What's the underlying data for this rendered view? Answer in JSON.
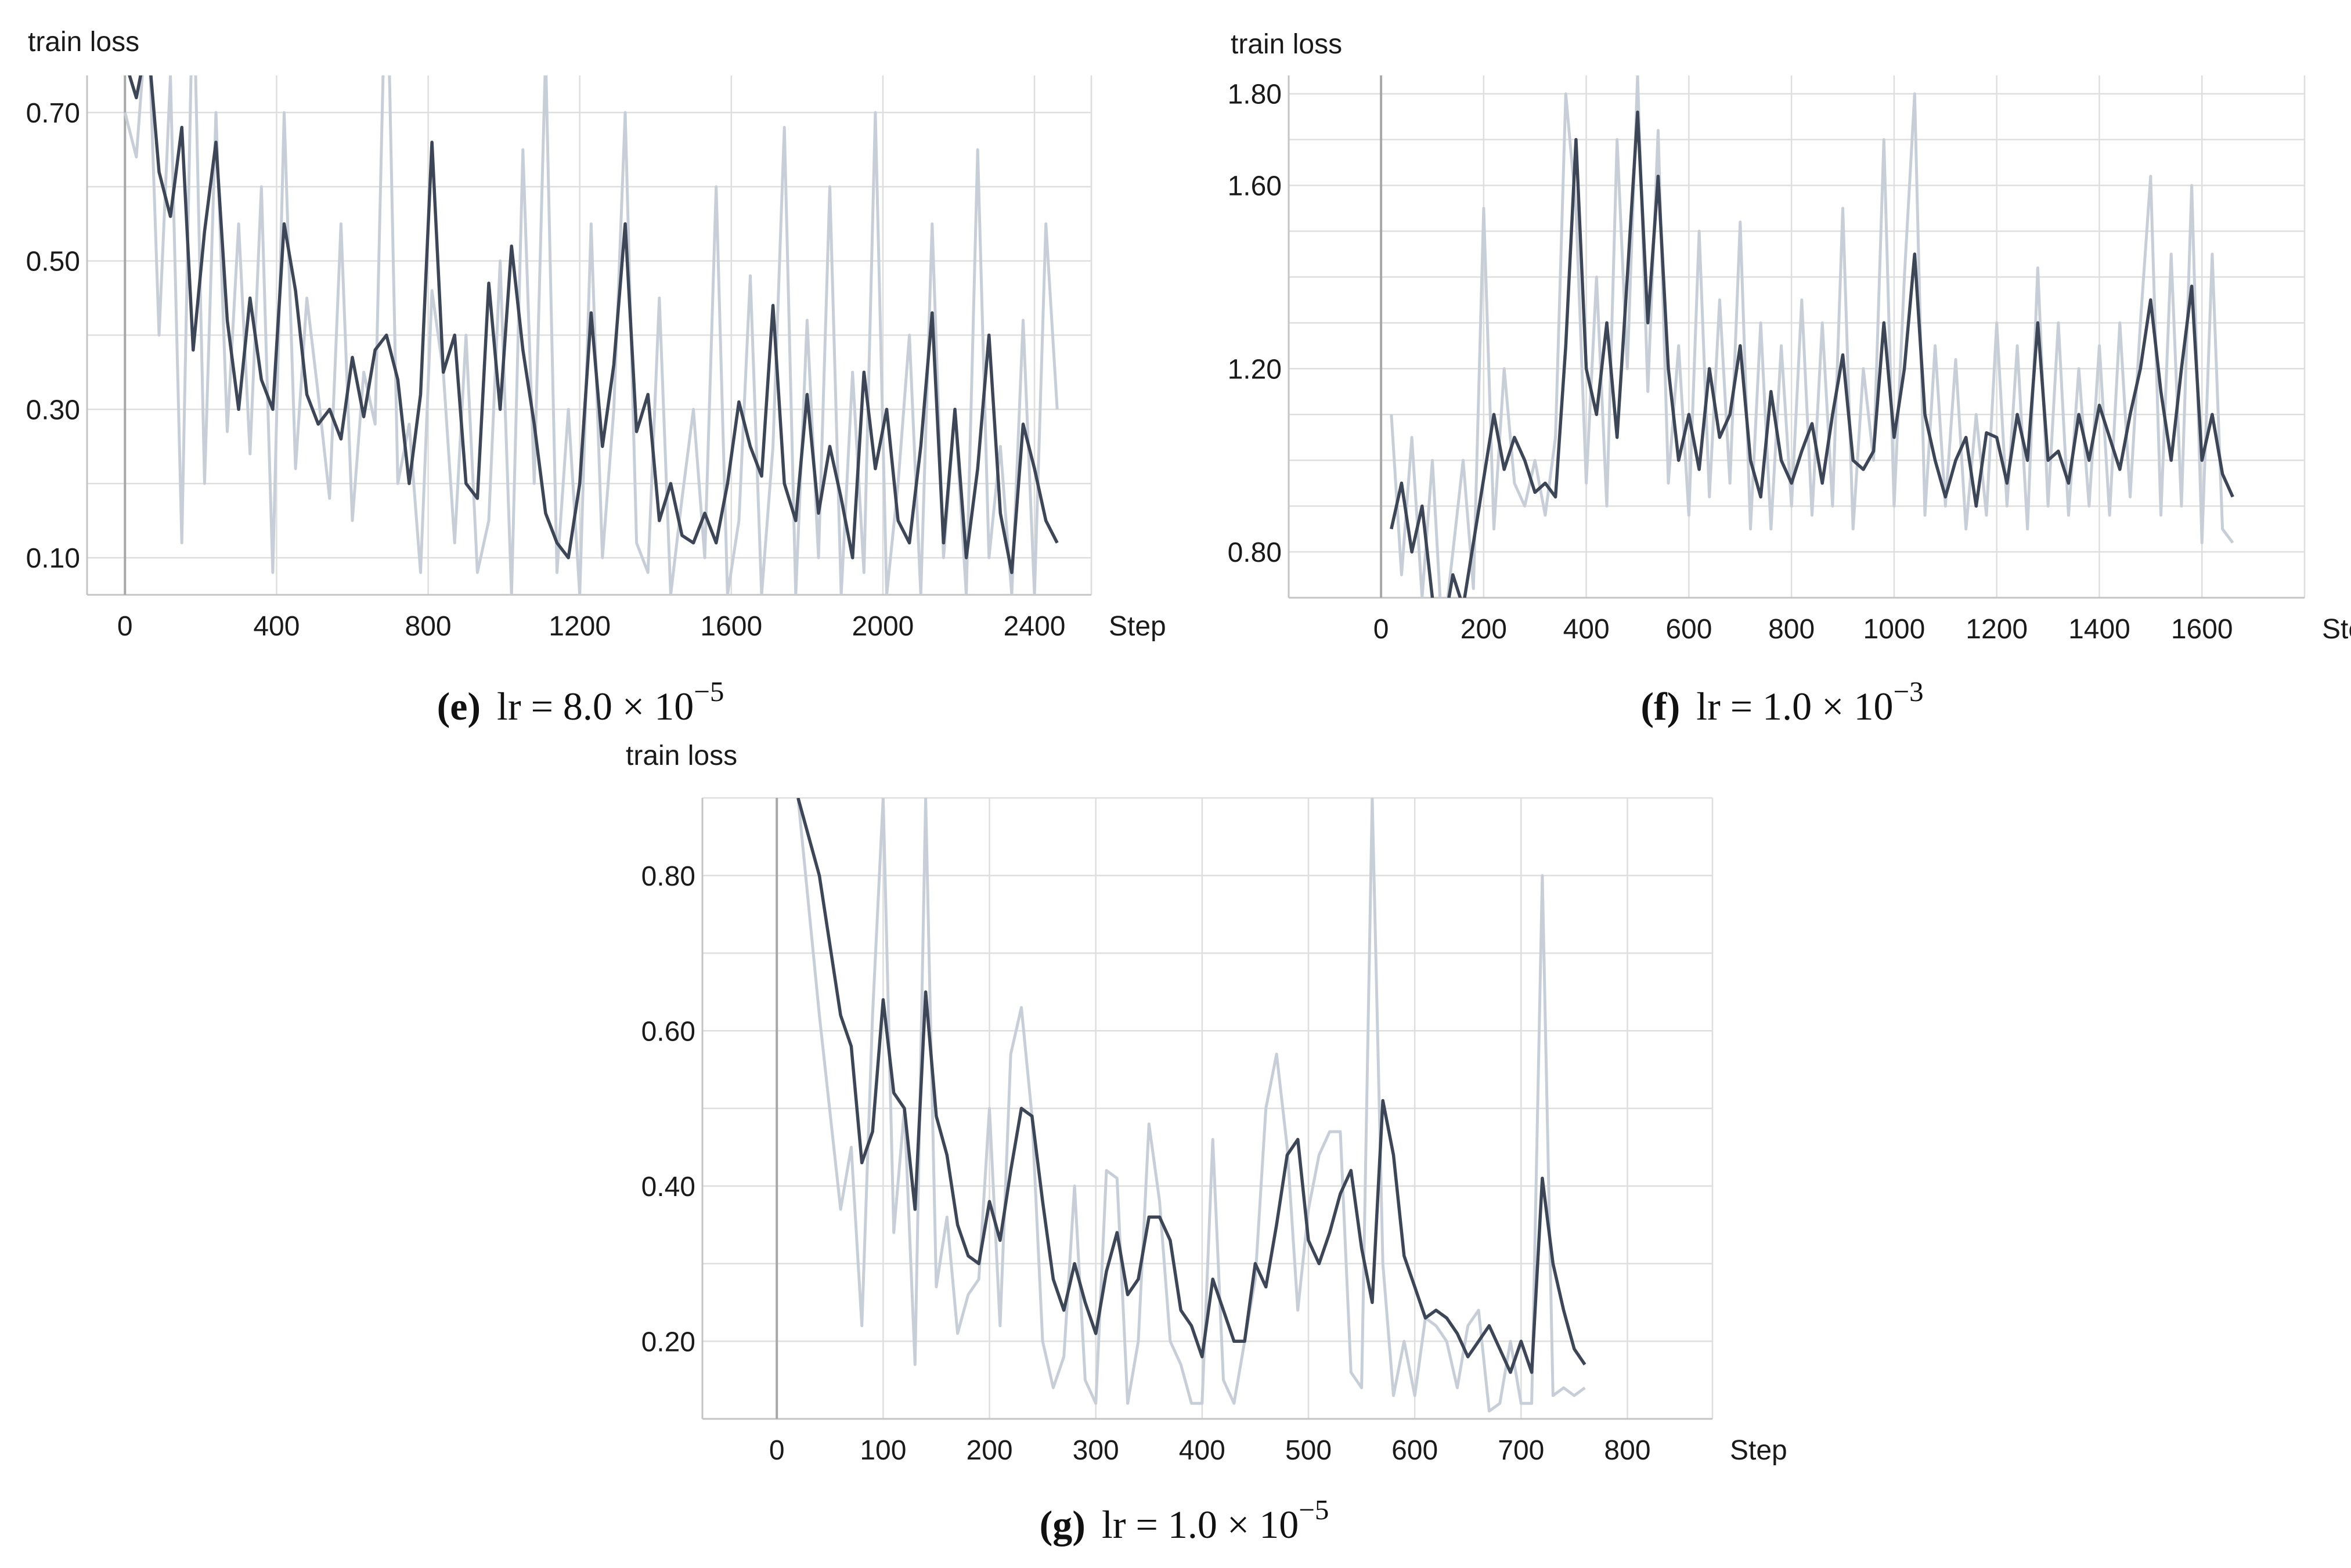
{
  "colors": {
    "smoothed": "#3d4656",
    "raw": "#c7ced8",
    "grid": "#dedede",
    "axis": "#c4c4c4",
    "zero_line": "#a8a8a8"
  },
  "chart_data": [
    {
      "id": "e",
      "type": "line",
      "ylabel": "train loss",
      "xlabel": "Step",
      "xlim": [
        -100,
        2550
      ],
      "ylim": [
        0.05,
        0.75
      ],
      "xticks": [
        0,
        400,
        800,
        1200,
        1600,
        2000,
        2400
      ],
      "yticks": [
        0.7,
        0.5,
        0.3,
        0.1
      ],
      "ytick_labels": [
        "0.70",
        "0.50",
        "0.30",
        "0.10"
      ],
      "caption": {
        "label": "(e)",
        "text": "lr = 8.0 × 10",
        "exp": "−5"
      },
      "series": [
        {
          "name": "smoothed",
          "x": [
            0,
            30,
            60,
            90,
            120,
            150,
            180,
            210,
            240,
            270,
            300,
            330,
            360,
            390,
            420,
            450,
            480,
            510,
            540,
            570,
            600,
            630,
            660,
            690,
            720,
            750,
            780,
            810,
            840,
            870,
            900,
            930,
            960,
            990,
            1020,
            1050,
            1080,
            1110,
            1140,
            1170,
            1200,
            1230,
            1260,
            1290,
            1320,
            1350,
            1380,
            1410,
            1440,
            1470,
            1500,
            1530,
            1560,
            1590,
            1620,
            1650,
            1680,
            1710,
            1740,
            1770,
            1800,
            1830,
            1860,
            1890,
            1920,
            1950,
            1980,
            2010,
            2040,
            2070,
            2100,
            2130,
            2160,
            2190,
            2220,
            2250,
            2280,
            2310,
            2340,
            2370,
            2400,
            2430,
            2460
          ],
          "y": [
            0.77,
            0.72,
            0.8,
            0.62,
            0.56,
            0.68,
            0.38,
            0.54,
            0.66,
            0.42,
            0.3,
            0.45,
            0.34,
            0.3,
            0.55,
            0.46,
            0.32,
            0.28,
            0.3,
            0.26,
            0.37,
            0.29,
            0.38,
            0.4,
            0.34,
            0.2,
            0.32,
            0.66,
            0.35,
            0.4,
            0.2,
            0.18,
            0.47,
            0.3,
            0.52,
            0.38,
            0.28,
            0.16,
            0.12,
            0.1,
            0.2,
            0.43,
            0.25,
            0.36,
            0.55,
            0.27,
            0.32,
            0.15,
            0.2,
            0.13,
            0.12,
            0.16,
            0.12,
            0.2,
            0.31,
            0.25,
            0.21,
            0.44,
            0.2,
            0.15,
            0.32,
            0.16,
            0.25,
            0.18,
            0.1,
            0.35,
            0.22,
            0.3,
            0.15,
            0.12,
            0.25,
            0.43,
            0.12,
            0.3,
            0.1,
            0.22,
            0.4,
            0.16,
            0.08,
            0.28,
            0.22,
            0.15,
            0.12
          ]
        },
        {
          "name": "raw",
          "x": [
            0,
            30,
            60,
            90,
            120,
            150,
            180,
            210,
            240,
            270,
            300,
            330,
            360,
            390,
            420,
            450,
            480,
            510,
            540,
            570,
            600,
            630,
            660,
            690,
            720,
            750,
            780,
            810,
            840,
            870,
            900,
            930,
            960,
            990,
            1020,
            1050,
            1080,
            1110,
            1140,
            1170,
            1200,
            1230,
            1260,
            1290,
            1320,
            1350,
            1380,
            1410,
            1440,
            1470,
            1500,
            1530,
            1560,
            1590,
            1620,
            1650,
            1680,
            1710,
            1740,
            1770,
            1800,
            1830,
            1860,
            1890,
            1920,
            1950,
            1980,
            2010,
            2040,
            2070,
            2100,
            2130,
            2160,
            2190,
            2220,
            2250,
            2280,
            2310,
            2340,
            2370,
            2400,
            2430,
            2460
          ],
          "y": [
            0.7,
            0.64,
            0.85,
            0.4,
            0.75,
            0.12,
            0.9,
            0.2,
            0.7,
            0.27,
            0.55,
            0.24,
            0.6,
            0.08,
            0.7,
            0.22,
            0.45,
            0.32,
            0.18,
            0.55,
            0.15,
            0.35,
            0.28,
            0.95,
            0.2,
            0.28,
            0.08,
            0.46,
            0.35,
            0.12,
            0.4,
            0.08,
            0.15,
            0.5,
            0.05,
            0.65,
            0.2,
            0.78,
            0.08,
            0.3,
            0.05,
            0.55,
            0.1,
            0.3,
            0.7,
            0.12,
            0.08,
            0.45,
            0.05,
            0.18,
            0.3,
            0.1,
            0.6,
            0.05,
            0.15,
            0.48,
            0.05,
            0.25,
            0.68,
            0.05,
            0.42,
            0.1,
            0.6,
            0.05,
            0.35,
            0.08,
            0.7,
            0.05,
            0.2,
            0.4,
            0.05,
            0.55,
            0.1,
            0.3,
            0.05,
            0.65,
            0.1,
            0.25,
            0.05,
            0.42,
            0.05,
            0.55,
            0.3
          ]
        }
      ]
    },
    {
      "id": "f",
      "type": "line",
      "ylabel": "train loss",
      "xlabel": "Step",
      "xlim": [
        -180,
        1800
      ],
      "ylim": [
        0.7,
        1.84
      ],
      "xticks": [
        0,
        200,
        400,
        600,
        800,
        1000,
        1200,
        1400,
        1600
      ],
      "yticks": [
        1.8,
        1.6,
        1.2,
        0.8
      ],
      "ytick_labels": [
        "1.80",
        "1.60",
        "1.20",
        "0.80"
      ],
      "caption": {
        "label": "(f)",
        "text": "lr = 1.0 × 10",
        "exp": "−3"
      },
      "series": [
        {
          "name": "smoothed",
          "x": [
            20,
            40,
            60,
            80,
            100,
            120,
            140,
            160,
            180,
            200,
            220,
            240,
            260,
            280,
            300,
            320,
            340,
            360,
            380,
            400,
            420,
            440,
            460,
            480,
            500,
            520,
            540,
            560,
            580,
            600,
            620,
            640,
            660,
            680,
            700,
            720,
            740,
            760,
            780,
            800,
            820,
            840,
            860,
            880,
            900,
            920,
            940,
            960,
            980,
            1000,
            1020,
            1040,
            1060,
            1080,
            1100,
            1120,
            1140,
            1160,
            1180,
            1200,
            1220,
            1240,
            1260,
            1280,
            1300,
            1320,
            1340,
            1360,
            1380,
            1400,
            1420,
            1440,
            1460,
            1480,
            1500,
            1520,
            1540,
            1560,
            1580,
            1600,
            1620,
            1640,
            1660
          ],
          "y": [
            0.85,
            0.95,
            0.8,
            0.9,
            0.7,
            0.62,
            0.75,
            0.68,
            0.82,
            0.96,
            1.1,
            0.98,
            1.05,
            1.0,
            0.93,
            0.95,
            0.92,
            1.25,
            1.7,
            1.2,
            1.1,
            1.3,
            1.05,
            1.4,
            1.76,
            1.3,
            1.62,
            1.2,
            1.0,
            1.1,
            0.98,
            1.2,
            1.05,
            1.1,
            1.25,
            1.0,
            0.92,
            1.15,
            1.0,
            0.95,
            1.02,
            1.08,
            0.95,
            1.1,
            1.23,
            1.0,
            0.98,
            1.02,
            1.3,
            1.05,
            1.2,
            1.45,
            1.1,
            1.0,
            0.92,
            1.0,
            1.05,
            0.9,
            1.06,
            1.05,
            0.95,
            1.1,
            1.0,
            1.3,
            1.0,
            1.02,
            0.95,
            1.1,
            1.0,
            1.12,
            1.05,
            0.98,
            1.1,
            1.2,
            1.35,
            1.15,
            1.0,
            1.2,
            1.38,
            1.0,
            1.1,
            0.97,
            0.92
          ]
        },
        {
          "name": "raw",
          "x": [
            20,
            40,
            60,
            80,
            100,
            120,
            140,
            160,
            180,
            200,
            220,
            240,
            260,
            280,
            300,
            320,
            340,
            360,
            380,
            400,
            420,
            440,
            460,
            480,
            500,
            520,
            540,
            560,
            580,
            600,
            620,
            640,
            660,
            680,
            700,
            720,
            740,
            760,
            780,
            800,
            820,
            840,
            860,
            880,
            900,
            920,
            940,
            960,
            980,
            1000,
            1020,
            1040,
            1060,
            1080,
            1100,
            1120,
            1140,
            1160,
            1180,
            1200,
            1220,
            1240,
            1260,
            1280,
            1300,
            1320,
            1340,
            1360,
            1380,
            1400,
            1420,
            1440,
            1460,
            1480,
            1500,
            1520,
            1540,
            1560,
            1580,
            1600,
            1620,
            1640,
            1660
          ],
          "y": [
            1.1,
            0.75,
            1.05,
            0.7,
            1.0,
            0.6,
            0.8,
            1.0,
            0.72,
            1.55,
            0.85,
            1.2,
            0.95,
            0.9,
            1.0,
            0.88,
            1.05,
            1.8,
            1.55,
            0.95,
            1.4,
            0.9,
            1.7,
            1.2,
            1.84,
            1.15,
            1.72,
            0.95,
            1.25,
            0.88,
            1.5,
            0.92,
            1.35,
            0.95,
            1.52,
            0.85,
            1.3,
            0.85,
            1.25,
            0.9,
            1.35,
            0.88,
            1.3,
            0.9,
            1.55,
            0.85,
            1.2,
            1.0,
            1.7,
            0.9,
            1.4,
            1.8,
            0.88,
            1.25,
            0.9,
            1.22,
            0.85,
            1.1,
            0.88,
            1.3,
            0.9,
            1.25,
            0.85,
            1.42,
            0.9,
            1.3,
            0.88,
            1.2,
            0.9,
            1.25,
            0.88,
            1.3,
            0.92,
            1.3,
            1.62,
            0.88,
            1.45,
            0.9,
            1.6,
            0.82,
            1.45,
            0.85,
            0.82
          ]
        }
      ]
    },
    {
      "id": "g",
      "type": "line",
      "ylabel": "train loss",
      "xlabel": "Step",
      "xlim": [
        -70,
        880
      ],
      "ylim": [
        0.1,
        0.9
      ],
      "xticks": [
        0,
        100,
        200,
        300,
        400,
        500,
        600,
        700,
        800
      ],
      "yticks": [
        0.8,
        0.6,
        0.4,
        0.2
      ],
      "ytick_labels": [
        "0.80",
        "0.60",
        "0.40",
        "0.20"
      ],
      "caption": {
        "label": "(g)",
        "text": "lr = 1.0 × 10",
        "exp": "−5"
      },
      "series": [
        {
          "name": "smoothed",
          "x": [
            20,
            40,
            60,
            70,
            80,
            90,
            100,
            110,
            120,
            130,
            140,
            150,
            160,
            170,
            180,
            190,
            200,
            210,
            220,
            230,
            240,
            250,
            260,
            270,
            280,
            290,
            300,
            310,
            320,
            330,
            340,
            350,
            360,
            370,
            380,
            390,
            400,
            410,
            420,
            430,
            440,
            450,
            460,
            470,
            480,
            490,
            500,
            510,
            520,
            530,
            540,
            550,
            560,
            570,
            580,
            590,
            600,
            610,
            620,
            630,
            640,
            650,
            660,
            670,
            680,
            690,
            700,
            710,
            720,
            730,
            740,
            750,
            760
          ],
          "y": [
            0.9,
            0.8,
            0.62,
            0.58,
            0.43,
            0.47,
            0.64,
            0.52,
            0.5,
            0.37,
            0.65,
            0.49,
            0.44,
            0.35,
            0.31,
            0.3,
            0.38,
            0.33,
            0.42,
            0.5,
            0.49,
            0.38,
            0.28,
            0.24,
            0.3,
            0.25,
            0.21,
            0.29,
            0.34,
            0.26,
            0.28,
            0.36,
            0.36,
            0.33,
            0.24,
            0.22,
            0.18,
            0.28,
            0.24,
            0.2,
            0.2,
            0.3,
            0.27,
            0.35,
            0.44,
            0.46,
            0.33,
            0.3,
            0.34,
            0.39,
            0.42,
            0.32,
            0.25,
            0.51,
            0.44,
            0.31,
            0.27,
            0.23,
            0.24,
            0.23,
            0.21,
            0.18,
            0.2,
            0.22,
            0.19,
            0.16,
            0.2,
            0.16,
            0.41,
            0.3,
            0.24,
            0.19,
            0.17
          ]
        },
        {
          "name": "raw",
          "x": [
            20,
            40,
            60,
            70,
            80,
            90,
            100,
            110,
            120,
            130,
            140,
            150,
            160,
            170,
            180,
            190,
            200,
            210,
            220,
            230,
            240,
            250,
            260,
            270,
            280,
            290,
            300,
            310,
            320,
            330,
            340,
            350,
            360,
            370,
            380,
            390,
            400,
            410,
            420,
            430,
            440,
            450,
            460,
            470,
            480,
            490,
            500,
            510,
            520,
            530,
            540,
            550,
            560,
            570,
            580,
            590,
            600,
            610,
            620,
            630,
            640,
            650,
            660,
            670,
            680,
            690,
            700,
            710,
            720,
            730,
            740,
            750,
            760
          ],
          "y": [
            0.9,
            0.62,
            0.37,
            0.45,
            0.22,
            0.62,
            0.9,
            0.34,
            0.5,
            0.17,
            0.9,
            0.27,
            0.36,
            0.21,
            0.26,
            0.28,
            0.5,
            0.22,
            0.57,
            0.63,
            0.49,
            0.2,
            0.14,
            0.18,
            0.4,
            0.15,
            0.12,
            0.42,
            0.41,
            0.12,
            0.2,
            0.48,
            0.38,
            0.2,
            0.17,
            0.12,
            0.12,
            0.46,
            0.15,
            0.12,
            0.2,
            0.28,
            0.5,
            0.57,
            0.45,
            0.24,
            0.37,
            0.44,
            0.47,
            0.47,
            0.16,
            0.14,
            0.9,
            0.3,
            0.13,
            0.2,
            0.13,
            0.23,
            0.22,
            0.2,
            0.14,
            0.22,
            0.24,
            0.11,
            0.12,
            0.2,
            0.12,
            0.12,
            0.8,
            0.13,
            0.14,
            0.13,
            0.14
          ]
        }
      ]
    }
  ]
}
